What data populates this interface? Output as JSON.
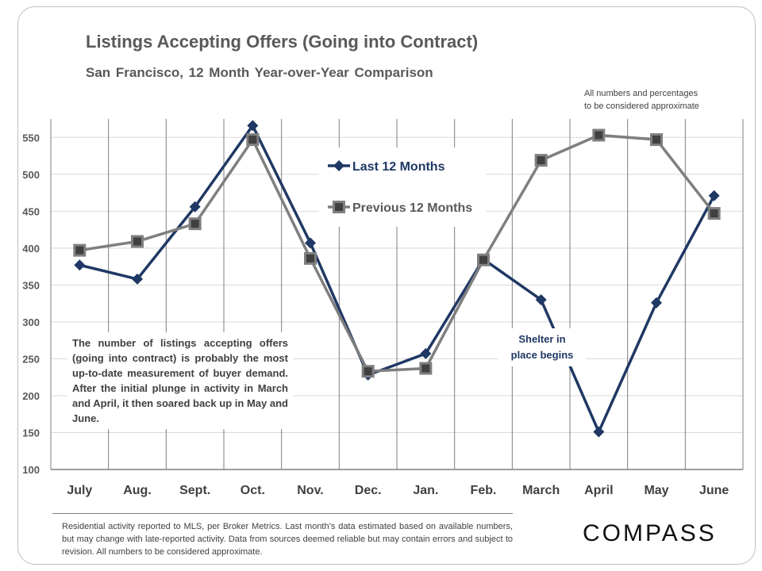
{
  "header": {
    "title": "Listings Accepting Offers (Going into Contract)",
    "subtitle": "San Francisco, 12 Month Year-over-Year Comparison",
    "disclaimer_line1": "All numbers and percentages",
    "disclaimer_line2": "to be considered approximate"
  },
  "chart_data": {
    "type": "line",
    "title": "Listings Accepting Offers (Going into Contract)",
    "categories": [
      "July",
      "Aug.",
      "Sept.",
      "Oct.",
      "Nov.",
      "Dec.",
      "Jan.",
      "Feb.",
      "March",
      "April",
      "May",
      "June"
    ],
    "yticks": [
      100,
      150,
      200,
      250,
      300,
      350,
      400,
      450,
      500,
      550
    ],
    "ylim": [
      100,
      575
    ],
    "grid": true,
    "legend_placement": "top-center",
    "series": [
      {
        "name": "Last 12 Months",
        "color": "#1f3864",
        "marker": "diamond",
        "values": [
          377,
          358,
          456,
          566,
          407,
          228,
          257,
          385,
          330,
          151,
          326,
          471
        ]
      },
      {
        "name": "Previous 12 Months",
        "color": "#7f7f7f",
        "marker": "square",
        "values": [
          397,
          409,
          433,
          547,
          386,
          233,
          237,
          384,
          519,
          553,
          547,
          447
        ]
      }
    ],
    "annotations": {
      "note": "The number of listings accepting offers (going into contract) is probably the most up-to-date measurement of buyer demand. After the initial plunge in activity in March and April, it then soared back up in May and June.",
      "shelter_line1": "Shelter in",
      "shelter_line2": "place begins"
    }
  },
  "footer": {
    "note": "Residential activity reported to MLS, per Broker Metrics. Last month’s data estimated based on available numbers, but may change with late-reported activity. Data from sources deemed reliable but may contain errors and subject to revision. All numbers to be considered approximate.",
    "logo": "COMPASS"
  }
}
